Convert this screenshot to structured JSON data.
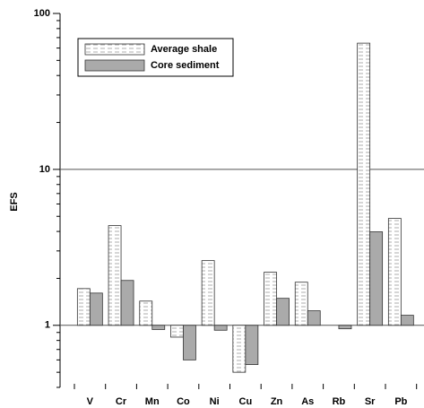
{
  "chart_data": {
    "type": "bar",
    "y_label": "EFS",
    "categories": [
      "V",
      "Cr",
      "Mn",
      "Co",
      "Ni",
      "Cu",
      "Zn",
      "As",
      "Rb",
      "Sr",
      "Pb"
    ],
    "series": [
      {
        "name": "Average shale",
        "color": "#ffffff",
        "values": [
          1.72,
          4.36,
          1.43,
          0.84,
          2.6,
          0.5,
          2.19,
          1.89,
          null,
          64.5,
          4.85
        ]
      },
      {
        "name": "Core sediment",
        "color": "#aaaaaa",
        "values": [
          1.61,
          1.94,
          0.94,
          0.6,
          0.93,
          0.56,
          1.49,
          1.24,
          0.95,
          3.98,
          1.16
        ]
      }
    ],
    "log_scale": true,
    "ylim": [
      0.4,
      100
    ],
    "yticks": [
      1,
      10,
      100
    ],
    "grid": true,
    "legend": "upper left"
  }
}
